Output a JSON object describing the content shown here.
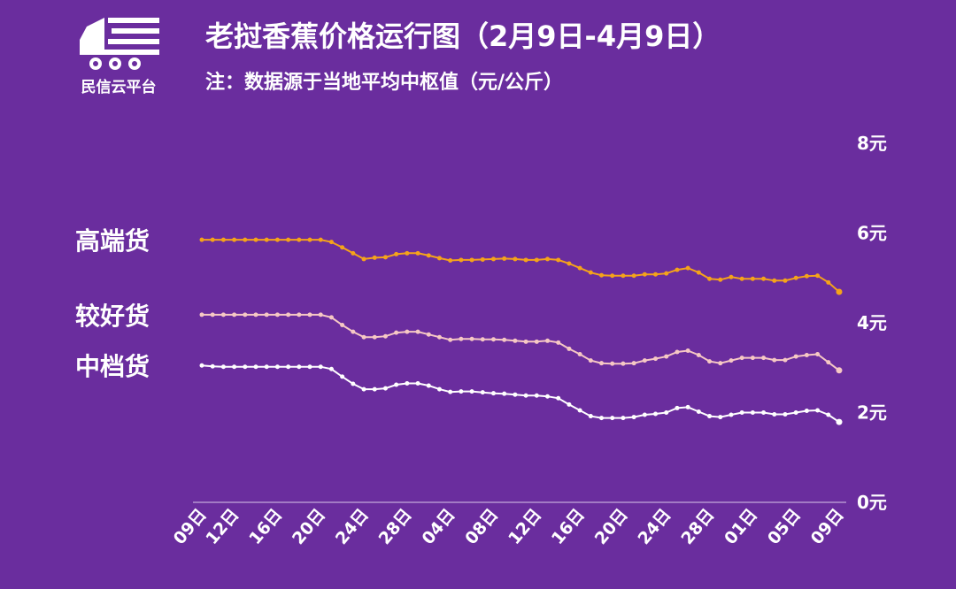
{
  "logo_text": "民信云平台",
  "chart_data": {
    "type": "line",
    "title": "老挝香蕉价格运行图（2月9日-4月9日）",
    "subtitle": "注：数据源于当地平均中枢值（元/公斤）",
    "categories": [
      "09日",
      null,
      null,
      "12日",
      null,
      null,
      null,
      "16日",
      null,
      null,
      null,
      "20日",
      null,
      null,
      null,
      "24日",
      null,
      null,
      null,
      "28日",
      null,
      null,
      null,
      "04日",
      null,
      null,
      null,
      "08日",
      null,
      null,
      null,
      "12日",
      null,
      null,
      null,
      "16日",
      null,
      null,
      null,
      "20日",
      null,
      null,
      null,
      "24日",
      null,
      null,
      null,
      "28日",
      null,
      null,
      null,
      "01日",
      null,
      null,
      null,
      "05日",
      null,
      null,
      null,
      "09日"
    ],
    "series": [
      {
        "name": "高端货",
        "color": "#f5a31a",
        "values": [
          5.85,
          5.85,
          5.85,
          5.85,
          5.85,
          5.85,
          5.85,
          5.85,
          5.85,
          5.85,
          5.85,
          5.85,
          5.8,
          5.68,
          5.55,
          5.42,
          5.45,
          5.46,
          5.53,
          5.55,
          5.55,
          5.5,
          5.44,
          5.39,
          5.4,
          5.4,
          5.41,
          5.42,
          5.43,
          5.42,
          5.4,
          5.4,
          5.42,
          5.4,
          5.32,
          5.22,
          5.12,
          5.06,
          5.05,
          5.05,
          5.05,
          5.08,
          5.08,
          5.1,
          5.18,
          5.22,
          5.12,
          4.98,
          4.96,
          5.02,
          4.98,
          4.98,
          4.98,
          4.94,
          4.94,
          5.0,
          5.04,
          5.05,
          4.9,
          4.69
        ]
      },
      {
        "name": "较好货",
        "color": "#f6c8c4",
        "values": [
          4.18,
          4.18,
          4.18,
          4.18,
          4.18,
          4.18,
          4.18,
          4.18,
          4.18,
          4.18,
          4.18,
          4.18,
          4.12,
          3.95,
          3.8,
          3.68,
          3.68,
          3.7,
          3.78,
          3.8,
          3.8,
          3.74,
          3.68,
          3.62,
          3.64,
          3.64,
          3.63,
          3.63,
          3.62,
          3.6,
          3.58,
          3.58,
          3.6,
          3.56,
          3.42,
          3.3,
          3.16,
          3.1,
          3.09,
          3.09,
          3.1,
          3.16,
          3.2,
          3.25,
          3.35,
          3.38,
          3.28,
          3.14,
          3.1,
          3.16,
          3.22,
          3.22,
          3.22,
          3.17,
          3.17,
          3.25,
          3.28,
          3.3,
          3.12,
          2.94
        ]
      },
      {
        "name": "中档货",
        "color": "#ffffff",
        "values": [
          3.05,
          3.03,
          3.02,
          3.02,
          3.02,
          3.02,
          3.02,
          3.02,
          3.02,
          3.02,
          3.02,
          3.02,
          2.97,
          2.8,
          2.64,
          2.52,
          2.52,
          2.54,
          2.62,
          2.65,
          2.65,
          2.6,
          2.52,
          2.46,
          2.47,
          2.47,
          2.45,
          2.43,
          2.42,
          2.4,
          2.38,
          2.38,
          2.36,
          2.32,
          2.18,
          2.05,
          1.92,
          1.88,
          1.88,
          1.88,
          1.9,
          1.95,
          1.97,
          2.0,
          2.1,
          2.12,
          2.02,
          1.92,
          1.9,
          1.95,
          2.0,
          2.0,
          2.0,
          1.96,
          1.96,
          2.0,
          2.04,
          2.05,
          1.95,
          1.79
        ]
      }
    ],
    "ylim": [
      0,
      8
    ],
    "yticks": [
      {
        "value": 0,
        "label": "0元"
      },
      {
        "value": 2,
        "label": "2元"
      },
      {
        "value": 4,
        "label": "4元"
      },
      {
        "value": 6,
        "label": "6元"
      },
      {
        "value": 8,
        "label": "8元"
      }
    ],
    "grid": false
  }
}
